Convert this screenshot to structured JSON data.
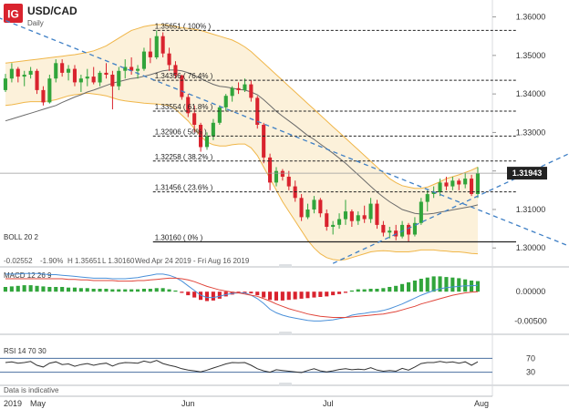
{
  "header": {
    "logo_text": "IG",
    "symbol": "USD/CAD",
    "interval": "Daily",
    "brand_color": "#d9232e"
  },
  "chart_data": {
    "type": "candlestick",
    "price_axis": {
      "ticks": [
        1.36,
        1.35,
        1.34,
        1.33,
        1.32,
        1.31,
        1.3
      ],
      "tick_labels": [
        "1.36000",
        "1.35000",
        "1.34000",
        "1.33000",
        "1.32000",
        "1.31000",
        "1.30000"
      ],
      "range": [
        1.2958,
        1.3625
      ],
      "last_price_label": "1.31943",
      "last_price": 1.31943
    },
    "time_axis": {
      "year_label": "2019",
      "month_labels": [
        "May",
        "Jun",
        "Jul",
        "Aug"
      ]
    },
    "candles": [
      {
        "o": 1.341,
        "h": 1.3452,
        "l": 1.3405,
        "c": 1.344
      },
      {
        "o": 1.344,
        "h": 1.348,
        "l": 1.343,
        "c": 1.3465
      },
      {
        "o": 1.3465,
        "h": 1.347,
        "l": 1.343,
        "c": 1.3445
      },
      {
        "o": 1.3445,
        "h": 1.346,
        "l": 1.342,
        "c": 1.345
      },
      {
        "o": 1.345,
        "h": 1.347,
        "l": 1.344,
        "c": 1.346
      },
      {
        "o": 1.346,
        "h": 1.3465,
        "l": 1.34,
        "c": 1.341
      },
      {
        "o": 1.341,
        "h": 1.342,
        "l": 1.337,
        "c": 1.3378
      },
      {
        "o": 1.3378,
        "h": 1.345,
        "l": 1.3375,
        "c": 1.344
      },
      {
        "o": 1.344,
        "h": 1.349,
        "l": 1.343,
        "c": 1.348
      },
      {
        "o": 1.348,
        "h": 1.349,
        "l": 1.3445,
        "c": 1.3455
      },
      {
        "o": 1.3455,
        "h": 1.3475,
        "l": 1.3435,
        "c": 1.3465
      },
      {
        "o": 1.3465,
        "h": 1.3475,
        "l": 1.342,
        "c": 1.343
      },
      {
        "o": 1.343,
        "h": 1.345,
        "l": 1.3405,
        "c": 1.344
      },
      {
        "o": 1.344,
        "h": 1.3465,
        "l": 1.342,
        "c": 1.3445
      },
      {
        "o": 1.3445,
        "h": 1.347,
        "l": 1.3425,
        "c": 1.343
      },
      {
        "o": 1.343,
        "h": 1.346,
        "l": 1.342,
        "c": 1.3455
      },
      {
        "o": 1.3455,
        "h": 1.348,
        "l": 1.344,
        "c": 1.345
      },
      {
        "o": 1.345,
        "h": 1.346,
        "l": 1.336,
        "c": 1.342
      },
      {
        "o": 1.342,
        "h": 1.347,
        "l": 1.341,
        "c": 1.346
      },
      {
        "o": 1.346,
        "h": 1.349,
        "l": 1.344,
        "c": 1.347
      },
      {
        "o": 1.347,
        "h": 1.3495,
        "l": 1.345,
        "c": 1.346
      },
      {
        "o": 1.346,
        "h": 1.3475,
        "l": 1.344,
        "c": 1.3465
      },
      {
        "o": 1.3465,
        "h": 1.352,
        "l": 1.346,
        "c": 1.351
      },
      {
        "o": 1.351,
        "h": 1.3545,
        "l": 1.348,
        "c": 1.3495
      },
      {
        "o": 1.3495,
        "h": 1.3565,
        "l": 1.349,
        "c": 1.355
      },
      {
        "o": 1.355,
        "h": 1.356,
        "l": 1.3495,
        "c": 1.3505
      },
      {
        "o": 1.3505,
        "h": 1.352,
        "l": 1.346,
        "c": 1.3475
      },
      {
        "o": 1.3475,
        "h": 1.3485,
        "l": 1.344,
        "c": 1.3448
      },
      {
        "o": 1.3448,
        "h": 1.345,
        "l": 1.3385,
        "c": 1.3392
      },
      {
        "o": 1.3392,
        "h": 1.34,
        "l": 1.334,
        "c": 1.335
      },
      {
        "o": 1.335,
        "h": 1.337,
        "l": 1.33,
        "c": 1.332
      },
      {
        "o": 1.332,
        "h": 1.3325,
        "l": 1.325,
        "c": 1.3262
      },
      {
        "o": 1.3262,
        "h": 1.33,
        "l": 1.3255,
        "c": 1.329
      },
      {
        "o": 1.329,
        "h": 1.3335,
        "l": 1.328,
        "c": 1.3325
      },
      {
        "o": 1.3325,
        "h": 1.337,
        "l": 1.332,
        "c": 1.3365
      },
      {
        "o": 1.3365,
        "h": 1.34,
        "l": 1.3355,
        "c": 1.3395
      },
      {
        "o": 1.3395,
        "h": 1.342,
        "l": 1.338,
        "c": 1.3415
      },
      {
        "o": 1.3415,
        "h": 1.343,
        "l": 1.34,
        "c": 1.341
      },
      {
        "o": 1.341,
        "h": 1.344,
        "l": 1.3405,
        "c": 1.3425
      },
      {
        "o": 1.3425,
        "h": 1.3435,
        "l": 1.338,
        "c": 1.339
      },
      {
        "o": 1.339,
        "h": 1.3395,
        "l": 1.331,
        "c": 1.332
      },
      {
        "o": 1.332,
        "h": 1.3325,
        "l": 1.322,
        "c": 1.3235
      },
      {
        "o": 1.3235,
        "h": 1.3245,
        "l": 1.315,
        "c": 1.317
      },
      {
        "o": 1.317,
        "h": 1.321,
        "l": 1.316,
        "c": 1.32
      },
      {
        "o": 1.32,
        "h": 1.3205,
        "l": 1.3175,
        "c": 1.3185
      },
      {
        "o": 1.3185,
        "h": 1.32,
        "l": 1.315,
        "c": 1.316
      },
      {
        "o": 1.316,
        "h": 1.3175,
        "l": 1.312,
        "c": 1.313
      },
      {
        "o": 1.313,
        "h": 1.314,
        "l": 1.307,
        "c": 1.308
      },
      {
        "o": 1.308,
        "h": 1.3115,
        "l": 1.3075,
        "c": 1.31
      },
      {
        "o": 1.31,
        "h": 1.3135,
        "l": 1.309,
        "c": 1.3125
      },
      {
        "o": 1.3125,
        "h": 1.313,
        "l": 1.308,
        "c": 1.309
      },
      {
        "o": 1.309,
        "h": 1.31,
        "l": 1.3045,
        "c": 1.3055
      },
      {
        "o": 1.3055,
        "h": 1.307,
        "l": 1.3035,
        "c": 1.306
      },
      {
        "o": 1.306,
        "h": 1.309,
        "l": 1.305,
        "c": 1.3075
      },
      {
        "o": 1.3075,
        "h": 1.3125,
        "l": 1.306,
        "c": 1.3095
      },
      {
        "o": 1.3095,
        "h": 1.31,
        "l": 1.3055,
        "c": 1.307
      },
      {
        "o": 1.307,
        "h": 1.3095,
        "l": 1.306,
        "c": 1.3085
      },
      {
        "o": 1.3085,
        "h": 1.311,
        "l": 1.3065,
        "c": 1.3075
      },
      {
        "o": 1.3075,
        "h": 1.313,
        "l": 1.3065,
        "c": 1.3115
      },
      {
        "o": 1.3115,
        "h": 1.3125,
        "l": 1.305,
        "c": 1.306
      },
      {
        "o": 1.306,
        "h": 1.307,
        "l": 1.303,
        "c": 1.304
      },
      {
        "o": 1.304,
        "h": 1.3055,
        "l": 1.3025,
        "c": 1.3045
      },
      {
        "o": 1.3045,
        "h": 1.306,
        "l": 1.302,
        "c": 1.303
      },
      {
        "o": 1.303,
        "h": 1.307,
        "l": 1.3025,
        "c": 1.306
      },
      {
        "o": 1.306,
        "h": 1.3065,
        "l": 1.3016,
        "c": 1.3035
      },
      {
        "o": 1.3035,
        "h": 1.308,
        "l": 1.303,
        "c": 1.3065
      },
      {
        "o": 1.3065,
        "h": 1.313,
        "l": 1.306,
        "c": 1.312
      },
      {
        "o": 1.312,
        "h": 1.315,
        "l": 1.3095,
        "c": 1.314
      },
      {
        "o": 1.314,
        "h": 1.316,
        "l": 1.313,
        "c": 1.3145
      },
      {
        "o": 1.3145,
        "h": 1.318,
        "l": 1.3135,
        "c": 1.317
      },
      {
        "o": 1.317,
        "h": 1.3185,
        "l": 1.315,
        "c": 1.316
      },
      {
        "o": 1.316,
        "h": 1.3185,
        "l": 1.315,
        "c": 1.3175
      },
      {
        "o": 1.3175,
        "h": 1.318,
        "l": 1.315,
        "c": 1.3165
      },
      {
        "o": 1.3165,
        "h": 1.3195,
        "l": 1.3155,
        "c": 1.318
      },
      {
        "o": 1.318,
        "h": 1.319,
        "l": 1.3135,
        "c": 1.314
      },
      {
        "o": 1.314,
        "h": 1.321,
        "l": 1.313,
        "c": 1.3194
      }
    ],
    "bollinger": {
      "label": "BOLL  20  2",
      "mid": [
        1.333,
        1.3335,
        1.334,
        1.3345,
        1.335,
        1.3355,
        1.336,
        1.3365,
        1.337,
        1.3378,
        1.3385,
        1.3392,
        1.3398,
        1.3405,
        1.341,
        1.3416,
        1.3422,
        1.3428,
        1.3432,
        1.3436,
        1.344,
        1.3442,
        1.3446,
        1.345,
        1.3455,
        1.346,
        1.3462,
        1.3462,
        1.346,
        1.3455,
        1.3448,
        1.344,
        1.3432,
        1.3425,
        1.342,
        1.3418,
        1.3415,
        1.3412,
        1.341,
        1.3405,
        1.3398,
        1.3385,
        1.337,
        1.3355,
        1.3342,
        1.333,
        1.3318,
        1.3305,
        1.3292,
        1.3282,
        1.327,
        1.3258,
        1.3246,
        1.3233,
        1.322,
        1.3205,
        1.319,
        1.3175,
        1.316,
        1.3145,
        1.3132,
        1.312,
        1.311,
        1.31,
        1.3095,
        1.309,
        1.3088,
        1.3088,
        1.309,
        1.3093,
        1.3096,
        1.3099,
        1.3102,
        1.3105,
        1.3108,
        1.3112
      ],
      "upper": [
        1.348,
        1.3482,
        1.3484,
        1.3486,
        1.3488,
        1.349,
        1.3492,
        1.3494,
        1.3496,
        1.3498,
        1.35,
        1.3502,
        1.3505,
        1.3508,
        1.3512,
        1.3518,
        1.3525,
        1.3535,
        1.3545,
        1.3555,
        1.3565,
        1.357,
        1.3575,
        1.3578,
        1.358,
        1.358,
        1.3578,
        1.3575,
        1.3572,
        1.357,
        1.3568,
        1.3565,
        1.356,
        1.3555,
        1.355,
        1.3545,
        1.354,
        1.3532,
        1.3522,
        1.351,
        1.3495,
        1.348,
        1.3465,
        1.345,
        1.3435,
        1.342,
        1.3405,
        1.339,
        1.3375,
        1.336,
        1.3345,
        1.333,
        1.3315,
        1.33,
        1.3285,
        1.327,
        1.3255,
        1.324,
        1.3225,
        1.321,
        1.3195,
        1.318,
        1.317,
        1.3162,
        1.3158,
        1.3155,
        1.3155,
        1.3158,
        1.3165,
        1.3172,
        1.318,
        1.3185,
        1.319,
        1.3196,
        1.3202,
        1.321
      ],
      "lower": [
        1.337,
        1.3372,
        1.3375,
        1.3378,
        1.338,
        1.338,
        1.338,
        1.3382,
        1.3385,
        1.339,
        1.3395,
        1.3398,
        1.34,
        1.3402,
        1.34,
        1.3398,
        1.3395,
        1.339,
        1.3385,
        1.3382,
        1.338,
        1.3378,
        1.3376,
        1.3375,
        1.3374,
        1.3372,
        1.337,
        1.336,
        1.3345,
        1.333,
        1.331,
        1.329,
        1.3275,
        1.3268,
        1.3265,
        1.3265,
        1.3268,
        1.327,
        1.327,
        1.326,
        1.324,
        1.321,
        1.318,
        1.315,
        1.312,
        1.3095,
        1.307,
        1.3045,
        1.302,
        1.3,
        1.2985,
        1.2975,
        1.297,
        1.2968,
        1.297,
        1.2975,
        1.298,
        1.2985,
        1.299,
        1.2992,
        1.2993,
        1.2992,
        1.299,
        1.299,
        1.299,
        1.2992,
        1.2995,
        1.2995,
        1.2995,
        1.2993,
        1.2992,
        1.299,
        1.299,
        1.2988,
        1.2986,
        1.2985
      ],
      "info": {
        "value": "-0.02552",
        "pct": "-1.90%",
        "high": "H  1.35651",
        "low": "L  1.30160",
        "range": "Wed Apr 24 2019 - Fri Aug 16 2019"
      }
    },
    "fibonacci": [
      {
        "price": 1.35651,
        "label": "1.35651 ( 100% )"
      },
      {
        "price": 1.34356,
        "label": "1.34356 ( 76.4% )"
      },
      {
        "price": 1.33554,
        "label": "1.33554 ( 61.8% )"
      },
      {
        "price": 1.32906,
        "label": "1.32906 ( 50% )"
      },
      {
        "price": 1.32258,
        "label": "1.32258 ( 38.2% )"
      },
      {
        "price": 1.31456,
        "label": "1.31456 ( 23.6% )"
      },
      {
        "price": 1.3016,
        "label": "1.30160 ( 0% )"
      }
    ],
    "macd": {
      "label": "MACD  12  26  9",
      "ticks": [
        "0.00000",
        "-0.00500"
      ],
      "hist": [
        0.0008,
        0.0009,
        0.001,
        0.0011,
        0.0011,
        0.001,
        0.0009,
        0.0008,
        0.0008,
        0.0008,
        0.0007,
        0.0007,
        0.0006,
        0.0006,
        0.0005,
        0.0005,
        0.0005,
        0.0004,
        0.0004,
        0.0004,
        0.0004,
        0.0004,
        0.0005,
        0.0005,
        0.0006,
        0.0006,
        0.0004,
        0.0002,
        -0.0002,
        -0.0006,
        -0.001,
        -0.0014,
        -0.0016,
        -0.0015,
        -0.0012,
        -0.0008,
        -0.0005,
        -0.0003,
        -0.0002,
        -0.0003,
        -0.0006,
        -0.001,
        -0.0014,
        -0.0015,
        -0.0015,
        -0.0014,
        -0.0013,
        -0.0012,
        -0.0011,
        -0.001,
        -0.0009,
        -0.0008,
        -0.0006,
        -0.0004,
        -0.0002,
        0.0002,
        0.0004,
        0.0004,
        0.0005,
        0.0005,
        0.0006,
        0.0008,
        0.001,
        0.0013,
        0.0016,
        0.0019,
        0.0022,
        0.0024,
        0.0026,
        0.0026,
        0.0025,
        0.0024,
        0.0023,
        0.0021,
        0.0019,
        0.0018
      ],
      "macd_line": [
        0.003,
        0.003,
        0.003,
        0.0031,
        0.0031,
        0.0031,
        0.003,
        0.0029,
        0.0029,
        0.0028,
        0.0027,
        0.0026,
        0.0025,
        0.0024,
        0.0023,
        0.0023,
        0.0023,
        0.0022,
        0.0022,
        0.0022,
        0.0023,
        0.0024,
        0.0026,
        0.0028,
        0.003,
        0.003,
        0.0028,
        0.0024,
        0.0018,
        0.001,
        0.0002,
        -0.0006,
        -0.001,
        -0.001,
        -0.0008,
        -0.0005,
        -0.0003,
        -0.0002,
        -0.0002,
        -0.0006,
        -0.0012,
        -0.002,
        -0.003,
        -0.0036,
        -0.004,
        -0.0043,
        -0.0045,
        -0.0047,
        -0.0049,
        -0.005,
        -0.005,
        -0.0049,
        -0.0048,
        -0.0046,
        -0.0044,
        -0.004,
        -0.0038,
        -0.0037,
        -0.0035,
        -0.0034,
        -0.0032,
        -0.0029,
        -0.0025,
        -0.0021,
        -0.0016,
        -0.0011,
        -0.0006,
        -0.0002,
        0.0002,
        0.0005,
        0.0007,
        0.0008,
        0.0009,
        0.001,
        0.001,
        0.0011
      ],
      "signal_line": [
        0.0022,
        0.0022,
        0.0022,
        0.0022,
        0.0022,
        0.0022,
        0.0022,
        0.0022,
        0.0022,
        0.0022,
        0.0021,
        0.0021,
        0.002,
        0.002,
        0.0019,
        0.0019,
        0.0019,
        0.0019,
        0.0018,
        0.0018,
        0.0018,
        0.0019,
        0.0019,
        0.002,
        0.0021,
        0.0022,
        0.0023,
        0.0023,
        0.0022,
        0.002,
        0.0017,
        0.0013,
        0.0009,
        0.0006,
        0.0003,
        0.0001,
        -0.0001,
        -0.0002,
        -0.0004,
        -0.0006,
        -0.0008,
        -0.0012,
        -0.0016,
        -0.0021,
        -0.0025,
        -0.0029,
        -0.0032,
        -0.0035,
        -0.0038,
        -0.004,
        -0.0042,
        -0.0043,
        -0.0044,
        -0.0044,
        -0.0044,
        -0.0043,
        -0.0042,
        -0.0041,
        -0.004,
        -0.0039,
        -0.0038,
        -0.0036,
        -0.0034,
        -0.0031,
        -0.0028,
        -0.0025,
        -0.0021,
        -0.0018,
        -0.0015,
        -0.0012,
        -0.0009,
        -0.0006,
        -0.0004,
        -0.0002,
        -0.0001,
        0.0
      ],
      "range": [
        -0.0068,
        0.0036
      ]
    },
    "rsi": {
      "label": "RSI  14  70  30",
      "levels": [
        70,
        30
      ],
      "level_labels": [
        "70",
        "30"
      ],
      "values": [
        58,
        60,
        56,
        58,
        61,
        50,
        45,
        56,
        60,
        52,
        54,
        47,
        52,
        55,
        50,
        54,
        56,
        48,
        55,
        58,
        57,
        56,
        62,
        58,
        64,
        55,
        50,
        46,
        40,
        36,
        34,
        31,
        36,
        42,
        48,
        54,
        58,
        57,
        58,
        50,
        40,
        34,
        30,
        37,
        35,
        33,
        31,
        29,
        35,
        40,
        34,
        31,
        34,
        38,
        40,
        37,
        39,
        37,
        43,
        36,
        33,
        35,
        33,
        41,
        36,
        45,
        55,
        58,
        58,
        61,
        58,
        60,
        56,
        60,
        50,
        60
      ],
      "range": [
        0,
        100
      ]
    },
    "footer_note": "Data is indicative"
  }
}
